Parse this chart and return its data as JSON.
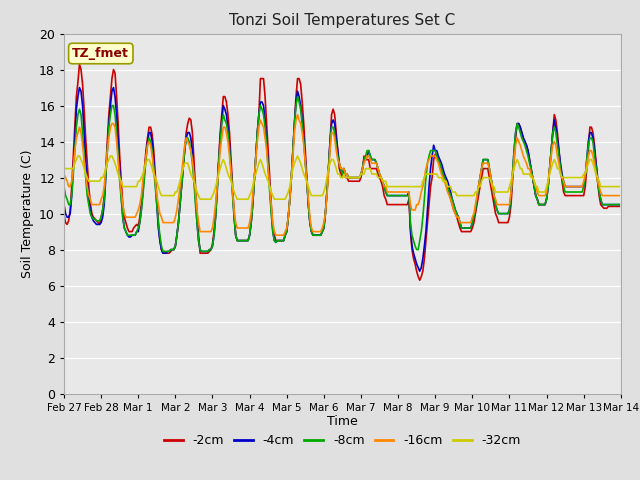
{
  "title": "Tonzi Soil Temperatures Set C",
  "xlabel": "Time",
  "ylabel": "Soil Temperature (C)",
  "annotation": "TZ_fmet",
  "ylim": [
    0,
    20
  ],
  "yticks": [
    0,
    2,
    4,
    6,
    8,
    10,
    12,
    14,
    16,
    18,
    20
  ],
  "fig_bg": "#e0e0e0",
  "plot_bg": "#e8e8e8",
  "x_tick_labels": [
    "Feb 27",
    "Feb 28",
    "Mar 1",
    "Mar 2",
    "Mar 3",
    "Mar 4",
    "Mar 5",
    "Mar 6",
    "Mar 7",
    "Mar 8",
    "Mar 9",
    "Mar 10",
    "Mar 11",
    "Mar 12",
    "Mar 13",
    "Mar 14"
  ],
  "colors": [
    "#cc0000",
    "#0000cc",
    "#00aa00",
    "#ff8800",
    "#cccc00"
  ],
  "labels": [
    "-2cm",
    "-4cm",
    "-8cm",
    "-16cm",
    "-32cm"
  ],
  "data_2cm": [
    9.9,
    9.5,
    9.4,
    9.6,
    10.2,
    11.5,
    13.2,
    15.0,
    16.5,
    17.3,
    18.3,
    18.0,
    17.2,
    15.8,
    14.2,
    12.8,
    11.5,
    10.6,
    10.0,
    9.8,
    9.7,
    9.6,
    9.5,
    9.4,
    9.8,
    10.2,
    11.0,
    12.5,
    14.0,
    15.5,
    16.5,
    17.5,
    18.0,
    17.8,
    16.5,
    15.0,
    13.2,
    11.8,
    10.5,
    9.8,
    9.5,
    9.2,
    9.0,
    9.0,
    9.0,
    9.2,
    9.3,
    9.4,
    9.3,
    9.8,
    10.5,
    11.5,
    12.5,
    13.5,
    14.2,
    14.8,
    14.8,
    14.4,
    13.5,
    12.2,
    10.8,
    9.5,
    8.5,
    8.0,
    7.8,
    7.9,
    7.8,
    7.8,
    7.8,
    7.9,
    8.0,
    8.0,
    8.2,
    8.8,
    9.5,
    10.5,
    11.5,
    12.5,
    13.5,
    14.5,
    15.0,
    15.3,
    15.2,
    14.5,
    13.0,
    11.5,
    10.0,
    8.8,
    7.8,
    7.8,
    7.8,
    7.8,
    7.8,
    7.8,
    7.9,
    8.0,
    8.3,
    9.0,
    10.0,
    11.5,
    13.0,
    14.5,
    15.5,
    16.5,
    16.5,
    16.2,
    15.5,
    14.5,
    13.0,
    11.5,
    10.0,
    8.8,
    8.5,
    8.5,
    8.5,
    8.5,
    8.5,
    8.5,
    8.5,
    8.5,
    8.8,
    9.5,
    10.5,
    11.8,
    13.2,
    14.5,
    15.5,
    17.5,
    17.5,
    17.5,
    16.5,
    15.0,
    13.5,
    12.0,
    10.5,
    9.2,
    8.8,
    8.5,
    8.5,
    8.5,
    8.5,
    8.5,
    8.5,
    8.8,
    9.0,
    9.8,
    10.8,
    12.0,
    13.5,
    15.0,
    16.5,
    17.5,
    17.5,
    17.2,
    16.2,
    15.0,
    13.5,
    12.0,
    10.5,
    9.5,
    9.0,
    8.8,
    8.8,
    8.8,
    8.8,
    8.8,
    8.8,
    9.0,
    9.2,
    10.0,
    11.2,
    12.5,
    14.0,
    15.5,
    15.8,
    15.5,
    14.5,
    13.5,
    12.5,
    12.2,
    12.0,
    12.5,
    12.0,
    12.0,
    11.8,
    11.8,
    11.8,
    11.8,
    11.8,
    11.8,
    11.8,
    11.8,
    12.0,
    12.5,
    13.2,
    13.0,
    13.0,
    13.0,
    12.5,
    12.5,
    12.5,
    12.5,
    12.5,
    12.2,
    12.0,
    11.8,
    11.5,
    11.0,
    10.8,
    10.5,
    10.5,
    10.5,
    10.5,
    10.5,
    10.5,
    10.5,
    10.5,
    10.5,
    10.5,
    10.5,
    10.5,
    10.5,
    10.5,
    10.8,
    9.0,
    8.0,
    7.5,
    7.2,
    6.8,
    6.5,
    6.3,
    6.5,
    6.8,
    7.5,
    8.5,
    9.5,
    10.5,
    11.5,
    12.0,
    13.0,
    13.3,
    13.3,
    13.0,
    12.8,
    12.5,
    12.2,
    12.0,
    11.8,
    11.5,
    11.2,
    10.8,
    10.5,
    10.2,
    10.0,
    9.8,
    9.5,
    9.2,
    9.0,
    9.0,
    9.0,
    9.0,
    9.0,
    9.0,
    9.0,
    9.2,
    9.5,
    10.0,
    10.5,
    11.0,
    11.5,
    12.0,
    12.5,
    12.5,
    12.5,
    12.5,
    12.0,
    11.5,
    11.0,
    10.5,
    10.0,
    9.8,
    9.5,
    9.5,
    9.5,
    9.5,
    9.5,
    9.5,
    9.5,
    9.8,
    10.5,
    11.8,
    13.0,
    14.2,
    15.0,
    15.0,
    14.8,
    14.5,
    14.2,
    14.0,
    13.8,
    13.5,
    13.0,
    12.5,
    12.0,
    11.5,
    11.0,
    10.8,
    10.5,
    10.5,
    10.5,
    10.5,
    10.5,
    10.8,
    11.5,
    12.5,
    13.5,
    14.5,
    15.5,
    15.2,
    14.5,
    13.5,
    12.5,
    11.8,
    11.2,
    11.0,
    11.0,
    11.0,
    11.0,
    11.0,
    11.0,
    11.0,
    11.0,
    11.0,
    11.0,
    11.0,
    11.0,
    11.0,
    11.5,
    12.5,
    13.5,
    14.8,
    14.8,
    14.5,
    13.8,
    12.8,
    11.8,
    11.0,
    10.5,
    10.4,
    10.3,
    10.3,
    10.3,
    10.4,
    10.4,
    10.4,
    10.4,
    10.4,
    10.4,
    10.4,
    10.4
  ],
  "data_4cm": [
    10.5,
    10.0,
    9.8,
    9.8,
    10.0,
    11.0,
    12.5,
    14.2,
    15.8,
    16.5,
    17.0,
    16.8,
    16.0,
    14.5,
    13.0,
    11.8,
    10.8,
    10.2,
    9.8,
    9.6,
    9.5,
    9.4,
    9.4,
    9.4,
    9.5,
    9.8,
    10.5,
    12.0,
    13.5,
    15.0,
    16.0,
    16.8,
    17.0,
    16.5,
    15.5,
    14.0,
    12.5,
    11.0,
    9.8,
    9.2,
    9.0,
    8.8,
    8.7,
    8.7,
    8.8,
    8.8,
    8.8,
    9.0,
    9.0,
    9.5,
    10.2,
    11.2,
    12.2,
    13.2,
    14.0,
    14.5,
    14.5,
    14.0,
    13.0,
    11.8,
    10.5,
    9.2,
    8.5,
    8.0,
    7.8,
    7.8,
    7.8,
    7.9,
    7.9,
    8.0,
    8.0,
    8.0,
    8.2,
    8.8,
    9.5,
    10.5,
    11.5,
    12.5,
    13.5,
    14.2,
    14.5,
    14.5,
    14.2,
    13.5,
    12.2,
    10.8,
    9.5,
    8.5,
    8.0,
    7.9,
    7.9,
    7.9,
    7.9,
    7.9,
    8.0,
    8.0,
    8.2,
    8.8,
    9.8,
    11.2,
    12.8,
    14.2,
    15.2,
    16.0,
    15.8,
    15.5,
    14.8,
    13.8,
    12.5,
    11.2,
    9.8,
    8.8,
    8.5,
    8.5,
    8.5,
    8.5,
    8.5,
    8.5,
    8.5,
    8.5,
    8.8,
    9.5,
    10.5,
    11.8,
    13.2,
    14.5,
    15.5,
    16.2,
    16.2,
    16.0,
    15.2,
    14.0,
    12.8,
    11.5,
    10.2,
    9.0,
    8.5,
    8.4,
    8.5,
    8.5,
    8.5,
    8.5,
    8.5,
    8.8,
    9.0,
    9.8,
    10.8,
    12.0,
    13.5,
    15.0,
    16.2,
    16.8,
    16.5,
    16.0,
    15.2,
    14.2,
    13.0,
    11.8,
    10.5,
    9.5,
    9.0,
    8.8,
    8.8,
    8.8,
    8.8,
    8.8,
    8.8,
    9.0,
    9.2,
    10.0,
    11.2,
    12.5,
    14.0,
    15.0,
    15.2,
    15.0,
    14.2,
    13.5,
    12.8,
    12.5,
    12.2,
    12.5,
    12.2,
    12.2,
    12.0,
    12.0,
    12.0,
    12.0,
    12.0,
    12.0,
    12.0,
    12.0,
    12.2,
    12.5,
    13.0,
    13.0,
    13.2,
    13.5,
    13.2,
    13.0,
    13.0,
    13.0,
    12.8,
    12.5,
    12.2,
    12.0,
    11.8,
    11.5,
    11.2,
    11.0,
    11.0,
    11.0,
    11.0,
    11.0,
    11.0,
    11.0,
    11.0,
    11.0,
    11.0,
    11.0,
    11.0,
    11.0,
    11.0,
    11.2,
    9.2,
    8.2,
    7.8,
    7.5,
    7.2,
    7.0,
    6.8,
    7.0,
    7.5,
    8.2,
    9.0,
    10.2,
    11.5,
    12.5,
    13.2,
    13.8,
    13.5,
    13.5,
    13.2,
    13.0,
    12.8,
    12.5,
    12.2,
    12.0,
    11.8,
    11.5,
    11.2,
    10.8,
    10.5,
    10.2,
    10.0,
    9.8,
    9.5,
    9.2,
    9.2,
    9.2,
    9.2,
    9.2,
    9.2,
    9.2,
    9.5,
    9.8,
    10.2,
    10.8,
    11.5,
    12.0,
    12.5,
    13.0,
    13.0,
    13.0,
    13.0,
    12.5,
    12.0,
    11.5,
    11.0,
    10.5,
    10.2,
    10.0,
    10.0,
    10.0,
    10.0,
    10.0,
    10.0,
    10.0,
    10.2,
    11.0,
    12.2,
    13.5,
    14.5,
    15.0,
    15.0,
    14.8,
    14.5,
    14.2,
    14.0,
    13.8,
    13.5,
    13.0,
    12.5,
    12.0,
    11.5,
    11.0,
    10.8,
    10.5,
    10.5,
    10.5,
    10.5,
    10.5,
    10.8,
    11.5,
    12.5,
    13.5,
    14.5,
    15.2,
    14.8,
    14.2,
    13.5,
    12.8,
    12.2,
    11.8,
    11.5,
    11.5,
    11.5,
    11.5,
    11.5,
    11.5,
    11.5,
    11.5,
    11.5,
    11.5,
    11.5,
    11.5,
    11.5,
    12.0,
    13.0,
    14.0,
    14.5,
    14.5,
    14.2,
    13.5,
    12.8,
    12.0,
    11.2,
    10.8,
    10.5,
    10.5,
    10.5,
    10.5,
    10.5,
    10.5,
    10.5,
    10.5,
    10.5,
    10.5,
    10.5,
    10.5
  ],
  "data_8cm": [
    11.5,
    11.0,
    10.8,
    10.5,
    10.5,
    11.0,
    12.2,
    13.5,
    14.8,
    15.5,
    15.8,
    15.5,
    14.5,
    13.2,
    12.0,
    11.0,
    10.5,
    10.0,
    9.8,
    9.7,
    9.7,
    9.6,
    9.6,
    9.6,
    9.8,
    10.2,
    10.8,
    12.2,
    13.5,
    14.8,
    15.5,
    16.0,
    16.0,
    15.5,
    14.5,
    13.2,
    11.8,
    10.8,
    9.8,
    9.2,
    9.0,
    8.8,
    8.8,
    8.8,
    8.8,
    8.8,
    8.8,
    9.0,
    9.2,
    9.5,
    10.2,
    11.0,
    12.0,
    13.0,
    13.8,
    14.2,
    14.0,
    13.5,
    12.5,
    11.5,
    10.5,
    9.5,
    8.8,
    8.2,
    7.9,
    7.9,
    7.9,
    7.9,
    7.9,
    8.0,
    8.0,
    8.0,
    8.2,
    8.8,
    9.5,
    10.5,
    11.5,
    12.5,
    13.5,
    14.2,
    14.2,
    14.0,
    13.5,
    12.8,
    11.8,
    10.5,
    9.5,
    8.5,
    8.0,
    7.9,
    7.9,
    7.9,
    7.9,
    7.9,
    8.0,
    8.0,
    8.2,
    8.8,
    9.8,
    11.2,
    12.8,
    14.0,
    15.0,
    15.5,
    15.2,
    15.0,
    14.5,
    13.5,
    12.5,
    11.0,
    9.8,
    8.8,
    8.5,
    8.5,
    8.5,
    8.5,
    8.5,
    8.5,
    8.5,
    8.5,
    8.8,
    9.5,
    10.5,
    11.8,
    13.2,
    14.5,
    15.5,
    16.0,
    15.8,
    15.5,
    14.8,
    13.8,
    12.5,
    11.2,
    10.0,
    9.0,
    8.5,
    8.4,
    8.5,
    8.5,
    8.5,
    8.5,
    8.5,
    8.8,
    9.0,
    9.8,
    10.8,
    12.0,
    13.5,
    15.0,
    16.0,
    16.5,
    16.2,
    15.8,
    15.0,
    14.0,
    12.8,
    11.8,
    10.5,
    9.5,
    9.0,
    8.8,
    8.8,
    8.8,
    8.8,
    8.8,
    8.8,
    9.0,
    9.2,
    10.0,
    11.2,
    12.5,
    13.8,
    14.8,
    14.8,
    14.5,
    13.8,
    13.2,
    12.8,
    12.5,
    12.2,
    12.5,
    12.2,
    12.2,
    12.0,
    12.0,
    12.0,
    12.0,
    12.0,
    12.0,
    12.0,
    12.0,
    12.2,
    12.5,
    13.0,
    13.2,
    13.5,
    13.5,
    13.2,
    13.0,
    13.0,
    13.0,
    12.8,
    12.5,
    12.2,
    12.0,
    11.8,
    11.5,
    11.2,
    11.0,
    11.0,
    11.0,
    11.0,
    11.0,
    11.0,
    11.0,
    11.0,
    11.0,
    11.0,
    11.0,
    11.0,
    11.0,
    11.0,
    11.0,
    9.5,
    8.8,
    8.5,
    8.2,
    8.0,
    8.0,
    8.5,
    9.0,
    9.8,
    10.8,
    12.0,
    12.8,
    13.2,
    13.5,
    13.5,
    13.5,
    13.5,
    13.2,
    13.0,
    12.8,
    12.5,
    12.2,
    12.0,
    11.8,
    11.5,
    11.2,
    11.0,
    10.8,
    10.5,
    10.2,
    10.0,
    9.8,
    9.5,
    9.2,
    9.2,
    9.2,
    9.2,
    9.2,
    9.2,
    9.2,
    9.5,
    9.8,
    10.2,
    10.8,
    11.5,
    12.0,
    12.5,
    13.0,
    13.0,
    13.0,
    13.0,
    12.5,
    12.0,
    11.5,
    11.0,
    10.5,
    10.2,
    10.0,
    10.0,
    10.0,
    10.0,
    10.0,
    10.0,
    10.0,
    10.2,
    11.0,
    12.2,
    13.5,
    14.5,
    15.0,
    14.8,
    14.5,
    14.2,
    14.0,
    13.8,
    13.5,
    13.2,
    12.8,
    12.5,
    12.0,
    11.5,
    11.0,
    10.8,
    10.5,
    10.5,
    10.5,
    10.5,
    10.5,
    10.8,
    11.5,
    12.5,
    13.5,
    14.5,
    14.8,
    14.5,
    13.8,
    13.2,
    12.5,
    12.0,
    11.5,
    11.2,
    11.2,
    11.2,
    11.2,
    11.2,
    11.2,
    11.2,
    11.2,
    11.2,
    11.2,
    11.2,
    11.2,
    11.5,
    12.0,
    13.0,
    13.8,
    14.2,
    14.2,
    14.0,
    13.2,
    12.5,
    11.8,
    11.2,
    10.8,
    10.5,
    10.5,
    10.5,
    10.5,
    10.5,
    10.5,
    10.5,
    10.5,
    10.5,
    10.5,
    10.5,
    10.5
  ],
  "data_16cm": [
    12.2,
    12.0,
    11.8,
    11.5,
    11.5,
    11.8,
    12.5,
    13.5,
    14.2,
    14.5,
    14.8,
    14.5,
    13.8,
    13.0,
    12.2,
    11.5,
    11.0,
    10.8,
    10.5,
    10.5,
    10.5,
    10.5,
    10.5,
    10.5,
    10.8,
    11.0,
    11.5,
    12.5,
    13.5,
    14.2,
    14.8,
    15.0,
    15.0,
    14.8,
    14.0,
    13.0,
    12.0,
    11.2,
    10.5,
    10.0,
    9.8,
    9.8,
    9.8,
    9.8,
    9.8,
    9.8,
    9.8,
    10.0,
    10.2,
    10.5,
    11.0,
    11.8,
    12.5,
    13.2,
    13.8,
    14.0,
    13.8,
    13.2,
    12.5,
    11.8,
    11.0,
    10.5,
    10.0,
    9.8,
    9.5,
    9.5,
    9.5,
    9.5,
    9.5,
    9.5,
    9.5,
    9.5,
    9.8,
    10.2,
    10.8,
    11.5,
    12.2,
    13.0,
    13.8,
    14.2,
    14.0,
    13.8,
    13.5,
    13.0,
    12.2,
    11.2,
    10.2,
    9.5,
    9.0,
    9.0,
    9.0,
    9.0,
    9.0,
    9.0,
    9.0,
    9.0,
    9.2,
    9.8,
    10.5,
    11.5,
    12.5,
    13.5,
    14.2,
    14.8,
    14.8,
    14.5,
    14.0,
    13.2,
    12.2,
    11.2,
    10.2,
    9.5,
    9.2,
    9.2,
    9.2,
    9.2,
    9.2,
    9.2,
    9.2,
    9.2,
    9.5,
    10.0,
    11.0,
    12.0,
    13.0,
    14.0,
    14.8,
    15.2,
    15.0,
    14.8,
    14.2,
    13.5,
    12.5,
    11.5,
    10.5,
    9.5,
    9.0,
    8.8,
    8.8,
    8.8,
    8.8,
    8.8,
    8.8,
    9.0,
    9.2,
    9.8,
    10.8,
    12.0,
    13.2,
    14.5,
    15.2,
    15.5,
    15.2,
    15.0,
    14.5,
    13.8,
    12.8,
    11.8,
    10.8,
    9.8,
    9.2,
    9.0,
    9.0,
    9.0,
    9.0,
    9.0,
    9.0,
    9.2,
    9.5,
    10.0,
    11.0,
    12.2,
    13.5,
    14.5,
    14.5,
    14.2,
    13.5,
    13.0,
    12.8,
    12.5,
    12.5,
    12.5,
    12.2,
    12.2,
    12.0,
    12.0,
    12.0,
    12.0,
    12.0,
    12.0,
    12.0,
    12.0,
    12.2,
    12.5,
    12.8,
    13.0,
    13.2,
    13.2,
    13.0,
    12.8,
    12.8,
    12.8,
    12.8,
    12.5,
    12.2,
    12.0,
    11.8,
    11.5,
    11.5,
    11.2,
    11.2,
    11.2,
    11.2,
    11.2,
    11.2,
    11.2,
    11.2,
    11.2,
    11.2,
    11.2,
    11.2,
    11.2,
    11.2,
    11.2,
    10.5,
    10.2,
    10.2,
    10.2,
    10.5,
    10.5,
    10.8,
    11.2,
    11.5,
    12.0,
    12.5,
    12.8,
    13.0,
    13.2,
    13.2,
    13.2,
    13.2,
    13.0,
    12.8,
    12.5,
    12.2,
    12.0,
    11.8,
    11.5,
    11.2,
    11.0,
    10.8,
    10.5,
    10.2,
    10.0,
    9.8,
    9.8,
    9.5,
    9.5,
    9.5,
    9.5,
    9.5,
    9.5,
    9.5,
    9.5,
    9.8,
    10.0,
    10.5,
    11.0,
    11.5,
    12.0,
    12.5,
    12.8,
    12.8,
    12.8,
    12.8,
    12.5,
    12.0,
    11.5,
    11.0,
    10.8,
    10.5,
    10.5,
    10.5,
    10.5,
    10.5,
    10.5,
    10.5,
    10.5,
    10.5,
    11.2,
    12.0,
    13.0,
    13.8,
    14.2,
    14.0,
    13.8,
    13.5,
    13.2,
    13.0,
    12.8,
    12.5,
    12.5,
    12.2,
    12.0,
    11.8,
    11.5,
    11.2,
    11.0,
    11.0,
    11.0,
    11.0,
    11.0,
    11.2,
    11.8,
    12.5,
    13.2,
    13.8,
    14.0,
    13.8,
    13.2,
    12.8,
    12.2,
    12.0,
    11.8,
    11.5,
    11.5,
    11.5,
    11.5,
    11.5,
    11.5,
    11.5,
    11.5,
    11.5,
    11.5,
    11.5,
    11.5,
    11.8,
    12.2,
    12.8,
    13.2,
    13.5,
    13.5,
    13.2,
    12.8,
    12.2,
    11.8,
    11.5,
    11.2,
    11.0,
    11.0,
    11.0,
    11.0,
    11.0,
    11.0,
    11.0,
    11.0,
    11.0,
    11.0,
    11.0,
    11.0
  ],
  "data_32cm": [
    12.5,
    12.5,
    12.5,
    12.5,
    12.5,
    12.5,
    12.5,
    12.8,
    13.0,
    13.2,
    13.2,
    13.0,
    12.8,
    12.5,
    12.2,
    12.0,
    11.8,
    11.8,
    11.8,
    11.8,
    11.8,
    11.8,
    11.8,
    11.8,
    12.0,
    12.0,
    12.2,
    12.5,
    12.8,
    13.0,
    13.2,
    13.2,
    13.0,
    12.8,
    12.5,
    12.2,
    12.0,
    11.8,
    11.5,
    11.5,
    11.5,
    11.5,
    11.5,
    11.5,
    11.5,
    11.5,
    11.5,
    11.5,
    11.8,
    11.8,
    12.0,
    12.2,
    12.5,
    12.8,
    13.0,
    13.0,
    12.8,
    12.5,
    12.2,
    12.0,
    11.8,
    11.5,
    11.2,
    11.0,
    11.0,
    11.0,
    11.0,
    11.0,
    11.0,
    11.0,
    11.0,
    11.0,
    11.2,
    11.2,
    11.5,
    11.8,
    12.2,
    12.5,
    12.8,
    12.8,
    12.8,
    12.5,
    12.2,
    12.0,
    11.8,
    11.5,
    11.2,
    11.0,
    10.8,
    10.8,
    10.8,
    10.8,
    10.8,
    10.8,
    10.8,
    10.8,
    11.0,
    11.2,
    11.5,
    11.8,
    12.2,
    12.5,
    12.8,
    13.0,
    12.8,
    12.5,
    12.2,
    12.0,
    11.8,
    11.5,
    11.2,
    11.0,
    10.8,
    10.8,
    10.8,
    10.8,
    10.8,
    10.8,
    10.8,
    10.8,
    11.0,
    11.2,
    11.5,
    12.0,
    12.2,
    12.5,
    12.8,
    13.0,
    12.8,
    12.5,
    12.2,
    12.0,
    11.8,
    11.5,
    11.2,
    11.0,
    10.8,
    10.8,
    10.8,
    10.8,
    10.8,
    10.8,
    10.8,
    10.8,
    11.0,
    11.2,
    11.5,
    12.0,
    12.5,
    12.8,
    13.0,
    13.2,
    13.0,
    12.8,
    12.5,
    12.2,
    12.0,
    11.8,
    11.5,
    11.2,
    11.0,
    11.0,
    11.0,
    11.0,
    11.0,
    11.0,
    11.0,
    11.0,
    11.2,
    11.5,
    12.0,
    12.5,
    12.8,
    13.0,
    13.0,
    12.8,
    12.5,
    12.2,
    12.2,
    12.0,
    12.0,
    12.2,
    12.0,
    12.0,
    12.0,
    12.0,
    12.0,
    12.0,
    12.0,
    12.0,
    12.0,
    12.0,
    12.2,
    12.2,
    12.2,
    12.5,
    12.5,
    12.5,
    12.5,
    12.2,
    12.2,
    12.2,
    12.2,
    12.0,
    12.0,
    12.0,
    11.8,
    11.8,
    11.8,
    11.5,
    11.5,
    11.5,
    11.5,
    11.5,
    11.5,
    11.5,
    11.5,
    11.5,
    11.5,
    11.5,
    11.5,
    11.5,
    11.5,
    11.5,
    11.5,
    11.5,
    11.5,
    11.5,
    11.5,
    11.5,
    11.5,
    11.5,
    11.8,
    12.0,
    12.2,
    12.2,
    12.2,
    12.2,
    12.2,
    12.2,
    12.2,
    12.2,
    12.0,
    12.0,
    12.0,
    11.8,
    11.8,
    11.8,
    11.5,
    11.5,
    11.5,
    11.2,
    11.2,
    11.2,
    11.0,
    11.0,
    11.0,
    11.0,
    11.0,
    11.0,
    11.0,
    11.0,
    11.0,
    11.0,
    11.0,
    11.0,
    11.2,
    11.2,
    11.5,
    11.5,
    11.8,
    12.0,
    12.0,
    12.0,
    12.0,
    12.0,
    11.8,
    11.5,
    11.5,
    11.2,
    11.2,
    11.2,
    11.2,
    11.2,
    11.2,
    11.2,
    11.2,
    11.2,
    11.5,
    11.8,
    12.2,
    12.5,
    12.8,
    13.0,
    12.8,
    12.5,
    12.5,
    12.2,
    12.2,
    12.2,
    12.2,
    12.2,
    12.0,
    12.0,
    11.8,
    11.5,
    11.5,
    11.2,
    11.2,
    11.2,
    11.2,
    11.2,
    11.5,
    11.8,
    12.2,
    12.5,
    12.8,
    13.0,
    12.8,
    12.5,
    12.5,
    12.2,
    12.0,
    12.0,
    12.0,
    12.0,
    12.0,
    12.0,
    12.0,
    12.0,
    12.0,
    12.0,
    12.0,
    12.0,
    12.0,
    12.0,
    12.2,
    12.2,
    12.5,
    12.8,
    13.0,
    13.0,
    12.8,
    12.5,
    12.2,
    12.0,
    11.8,
    11.5,
    11.5,
    11.5,
    11.5,
    11.5,
    11.5,
    11.5,
    11.5,
    11.5,
    11.5,
    11.5,
    11.5,
    11.5
  ]
}
